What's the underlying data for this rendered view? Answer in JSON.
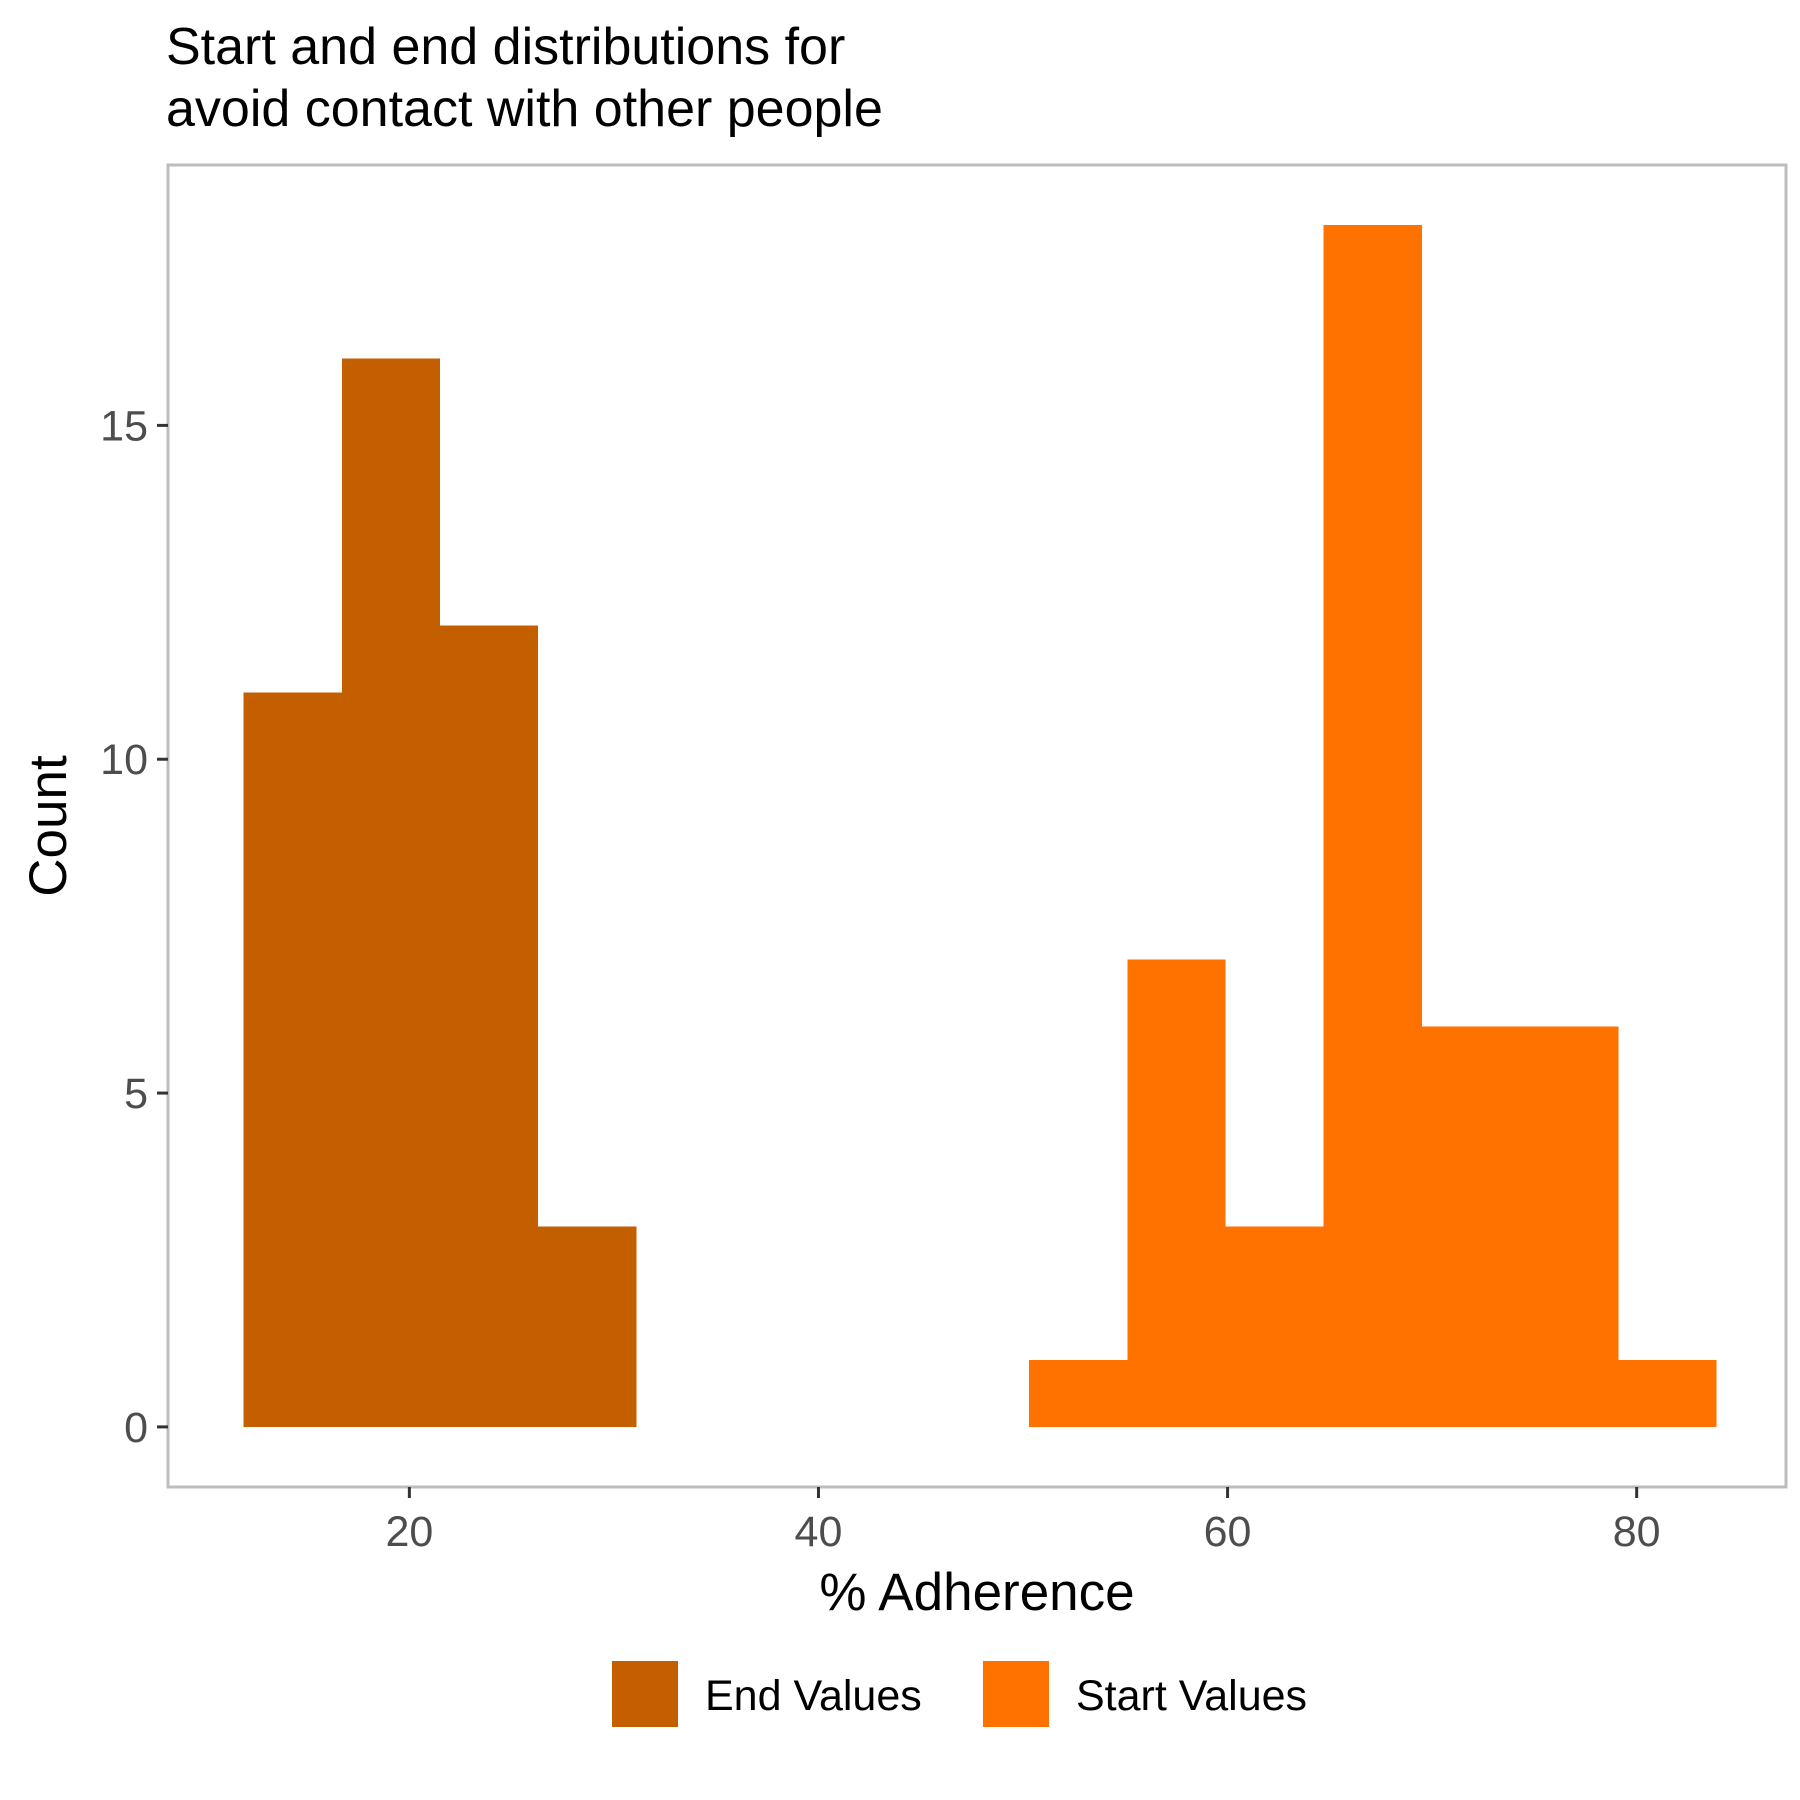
{
  "chart_data": {
    "type": "bar",
    "title_lines": [
      "Start and end distributions for",
      "avoid contact with other people"
    ],
    "xlabel": "% Adherence",
    "ylabel": "Count",
    "xlim": [
      8.2,
      87.3
    ],
    "ylim": [
      -0.9,
      18.9
    ],
    "xticks": [
      20,
      40,
      60,
      80
    ],
    "yticks": [
      0,
      5,
      10,
      15
    ],
    "grid": false,
    "legend_position": "bottom",
    "series": [
      {
        "name": "End Values",
        "color": "#C45F00",
        "bins": [
          {
            "x0": 11.9,
            "x1": 16.7,
            "count": 11
          },
          {
            "x0": 16.7,
            "x1": 21.5,
            "count": 16
          },
          {
            "x0": 21.5,
            "x1": 26.3,
            "count": 12
          },
          {
            "x0": 26.3,
            "x1": 31.1,
            "count": 3
          }
        ]
      },
      {
        "name": "Start Values",
        "color": "#FF7200",
        "bins": [
          {
            "x0": 50.3,
            "x1": 55.1,
            "count": 1
          },
          {
            "x0": 55.1,
            "x1": 59.9,
            "count": 7
          },
          {
            "x0": 59.9,
            "x1": 64.7,
            "count": 3
          },
          {
            "x0": 64.7,
            "x1": 69.5,
            "count": 18
          },
          {
            "x0": 69.5,
            "x1": 74.3,
            "count": 6
          },
          {
            "x0": 74.3,
            "x1": 79.1,
            "count": 6
          },
          {
            "x0": 79.1,
            "x1": 83.9,
            "count": 1
          }
        ]
      }
    ]
  }
}
